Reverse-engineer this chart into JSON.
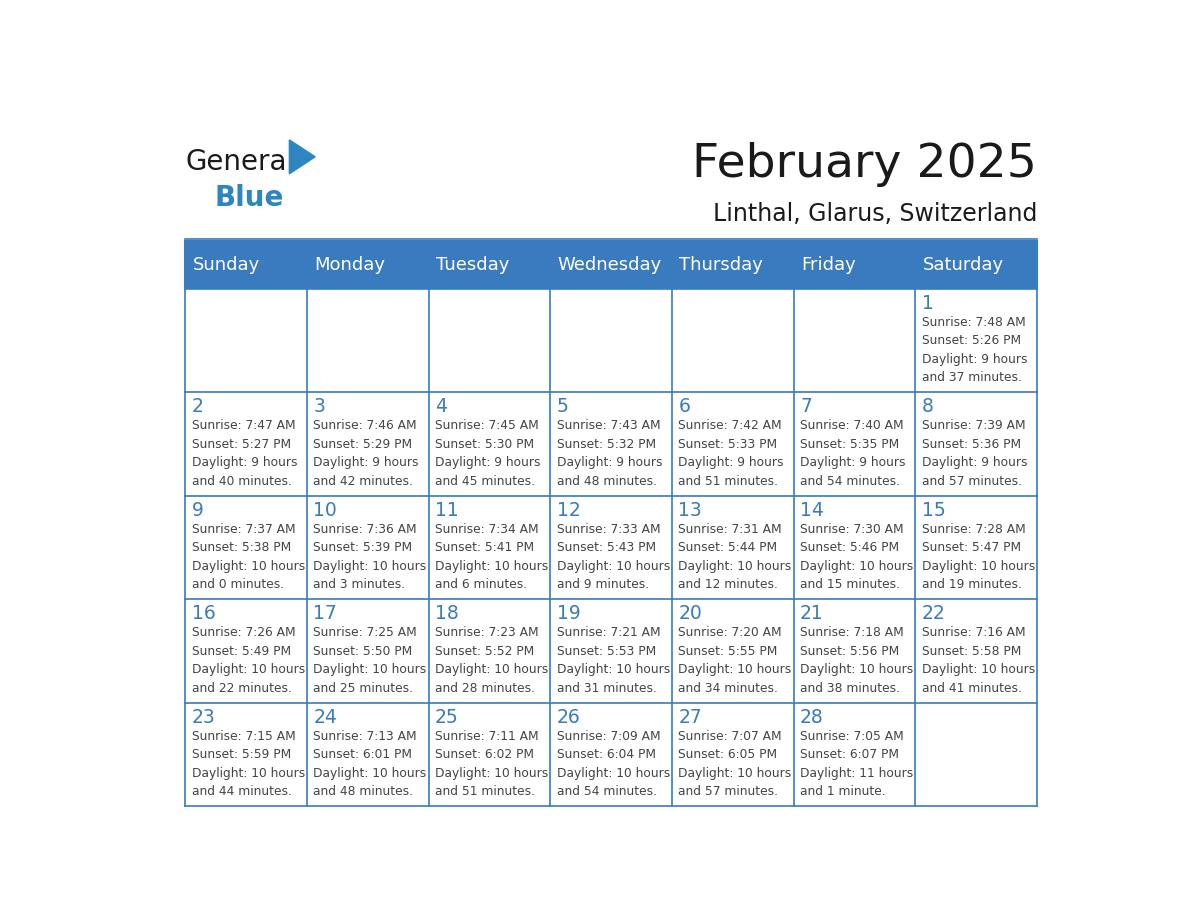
{
  "title": "February 2025",
  "subtitle": "Linthal, Glarus, Switzerland",
  "days_of_week": [
    "Sunday",
    "Monday",
    "Tuesday",
    "Wednesday",
    "Thursday",
    "Friday",
    "Saturday"
  ],
  "header_bg_color": "#3a7abf",
  "header_text_color": "#ffffff",
  "cell_bg_color": "#ffffff",
  "border_color": "#3a7abf",
  "day_number_color": "#3a7abf",
  "text_color": "#444444",
  "title_color": "#1a1a1a",
  "logo_general_color": "#1a1a1a",
  "logo_blue_color": "#2e86c1",
  "calendar_data": [
    [
      null,
      null,
      null,
      null,
      null,
      null,
      {
        "day": 1,
        "sunrise": "7:48 AM",
        "sunset": "5:26 PM",
        "daylight": "9 hours\nand 37 minutes."
      }
    ],
    [
      {
        "day": 2,
        "sunrise": "7:47 AM",
        "sunset": "5:27 PM",
        "daylight": "9 hours\nand 40 minutes."
      },
      {
        "day": 3,
        "sunrise": "7:46 AM",
        "sunset": "5:29 PM",
        "daylight": "9 hours\nand 42 minutes."
      },
      {
        "day": 4,
        "sunrise": "7:45 AM",
        "sunset": "5:30 PM",
        "daylight": "9 hours\nand 45 minutes."
      },
      {
        "day": 5,
        "sunrise": "7:43 AM",
        "sunset": "5:32 PM",
        "daylight": "9 hours\nand 48 minutes."
      },
      {
        "day": 6,
        "sunrise": "7:42 AM",
        "sunset": "5:33 PM",
        "daylight": "9 hours\nand 51 minutes."
      },
      {
        "day": 7,
        "sunrise": "7:40 AM",
        "sunset": "5:35 PM",
        "daylight": "9 hours\nand 54 minutes."
      },
      {
        "day": 8,
        "sunrise": "7:39 AM",
        "sunset": "5:36 PM",
        "daylight": "9 hours\nand 57 minutes."
      }
    ],
    [
      {
        "day": 9,
        "sunrise": "7:37 AM",
        "sunset": "5:38 PM",
        "daylight": "10 hours\nand 0 minutes."
      },
      {
        "day": 10,
        "sunrise": "7:36 AM",
        "sunset": "5:39 PM",
        "daylight": "10 hours\nand 3 minutes."
      },
      {
        "day": 11,
        "sunrise": "7:34 AM",
        "sunset": "5:41 PM",
        "daylight": "10 hours\nand 6 minutes."
      },
      {
        "day": 12,
        "sunrise": "7:33 AM",
        "sunset": "5:43 PM",
        "daylight": "10 hours\nand 9 minutes."
      },
      {
        "day": 13,
        "sunrise": "7:31 AM",
        "sunset": "5:44 PM",
        "daylight": "10 hours\nand 12 minutes."
      },
      {
        "day": 14,
        "sunrise": "7:30 AM",
        "sunset": "5:46 PM",
        "daylight": "10 hours\nand 15 minutes."
      },
      {
        "day": 15,
        "sunrise": "7:28 AM",
        "sunset": "5:47 PM",
        "daylight": "10 hours\nand 19 minutes."
      }
    ],
    [
      {
        "day": 16,
        "sunrise": "7:26 AM",
        "sunset": "5:49 PM",
        "daylight": "10 hours\nand 22 minutes."
      },
      {
        "day": 17,
        "sunrise": "7:25 AM",
        "sunset": "5:50 PM",
        "daylight": "10 hours\nand 25 minutes."
      },
      {
        "day": 18,
        "sunrise": "7:23 AM",
        "sunset": "5:52 PM",
        "daylight": "10 hours\nand 28 minutes."
      },
      {
        "day": 19,
        "sunrise": "7:21 AM",
        "sunset": "5:53 PM",
        "daylight": "10 hours\nand 31 minutes."
      },
      {
        "day": 20,
        "sunrise": "7:20 AM",
        "sunset": "5:55 PM",
        "daylight": "10 hours\nand 34 minutes."
      },
      {
        "day": 21,
        "sunrise": "7:18 AM",
        "sunset": "5:56 PM",
        "daylight": "10 hours\nand 38 minutes."
      },
      {
        "day": 22,
        "sunrise": "7:16 AM",
        "sunset": "5:58 PM",
        "daylight": "10 hours\nand 41 minutes."
      }
    ],
    [
      {
        "day": 23,
        "sunrise": "7:15 AM",
        "sunset": "5:59 PM",
        "daylight": "10 hours\nand 44 minutes."
      },
      {
        "day": 24,
        "sunrise": "7:13 AM",
        "sunset": "6:01 PM",
        "daylight": "10 hours\nand 48 minutes."
      },
      {
        "day": 25,
        "sunrise": "7:11 AM",
        "sunset": "6:02 PM",
        "daylight": "10 hours\nand 51 minutes."
      },
      {
        "day": 26,
        "sunrise": "7:09 AM",
        "sunset": "6:04 PM",
        "daylight": "10 hours\nand 54 minutes."
      },
      {
        "day": 27,
        "sunrise": "7:07 AM",
        "sunset": "6:05 PM",
        "daylight": "10 hours\nand 57 minutes."
      },
      {
        "day": 28,
        "sunrise": "7:05 AM",
        "sunset": "6:07 PM",
        "daylight": "11 hours\nand 1 minute."
      },
      null
    ]
  ]
}
